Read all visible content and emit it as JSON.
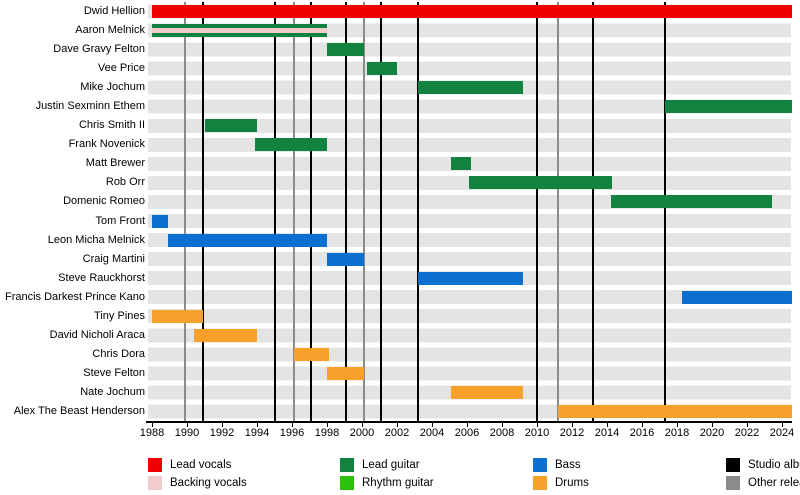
{
  "chart_data": {
    "type": "bar",
    "variant": "gantt-member-timeline",
    "title": "",
    "xlabel": "",
    "ylabel": "",
    "grid": "off",
    "legend_position": "bottom",
    "present_end": 2024.55,
    "x_axis": {
      "start": 1988,
      "end": 2024,
      "tick_interval": 2,
      "ticks": [
        1988,
        1990,
        1992,
        1994,
        1996,
        1998,
        2000,
        2002,
        2004,
        2006,
        2008,
        2010,
        2012,
        2014,
        2016,
        2018,
        2020,
        2022,
        2024
      ]
    },
    "members": [
      {
        "name": "Dwid Hellion",
        "segments": [
          {
            "role": "Lead vocals",
            "start": 1988.0,
            "end": "present"
          }
        ]
      },
      {
        "name": "Aaron Melnick",
        "segments": [
          {
            "role": "Lead guitar",
            "start": 1988.0,
            "end": 1998.0
          },
          {
            "role": "Backing vocals",
            "start": 1988.0,
            "end": 1998.0,
            "overlay": true
          }
        ]
      },
      {
        "name": "Dave Gravy Felton",
        "segments": [
          {
            "role": "Lead guitar",
            "start": 1998.0,
            "end": 2000.1
          }
        ]
      },
      {
        "name": "Vee Price",
        "segments": [
          {
            "role": "Lead guitar",
            "start": 2000.3,
            "end": 2002.0
          }
        ]
      },
      {
        "name": "Mike Jochum",
        "segments": [
          {
            "role": "Lead guitar",
            "start": 2003.2,
            "end": 2009.2
          }
        ]
      },
      {
        "name": "Justin Sexminn Ethem",
        "segments": [
          {
            "role": "Lead guitar",
            "start": 2017.3,
            "end": "present"
          }
        ]
      },
      {
        "name": "Chris Smith II",
        "segments": [
          {
            "role": "Lead guitar",
            "start": 1991.0,
            "end": 1994.0
          }
        ]
      },
      {
        "name": "Frank Novenick",
        "segments": [
          {
            "role": "Lead guitar",
            "start": 1993.9,
            "end": 1998.0
          }
        ]
      },
      {
        "name": "Matt Brewer",
        "segments": [
          {
            "role": "Lead guitar",
            "start": 2005.1,
            "end": 2006.2
          }
        ]
      },
      {
        "name": "Rob Orr",
        "segments": [
          {
            "role": "Lead guitar",
            "start": 2006.1,
            "end": 2014.3
          }
        ]
      },
      {
        "name": "Domenic Romeo",
        "segments": [
          {
            "role": "Lead guitar",
            "start": 2014.2,
            "end": 2023.4
          }
        ]
      },
      {
        "name": "Tom Front",
        "segments": [
          {
            "role": "Bass",
            "start": 1988.0,
            "end": 1988.9
          }
        ]
      },
      {
        "name": "Leon Micha Melnick",
        "segments": [
          {
            "role": "Bass",
            "start": 1988.9,
            "end": 1998.0
          }
        ]
      },
      {
        "name": "Craig Martini",
        "segments": [
          {
            "role": "Bass",
            "start": 1998.0,
            "end": 2000.1
          }
        ]
      },
      {
        "name": "Steve Rauckhorst",
        "segments": [
          {
            "role": "Bass",
            "start": 2003.2,
            "end": 2009.2
          }
        ]
      },
      {
        "name": "Francis Darkest Prince Kano",
        "segments": [
          {
            "role": "Bass",
            "start": 2018.3,
            "end": "present"
          }
        ]
      },
      {
        "name": "Tiny Pines",
        "segments": [
          {
            "role": "Drums",
            "start": 1988.0,
            "end": 1990.9
          }
        ]
      },
      {
        "name": "David Nicholi Araca",
        "segments": [
          {
            "role": "Drums",
            "start": 1990.4,
            "end": 1994.0
          }
        ]
      },
      {
        "name": "Chris Dora",
        "segments": [
          {
            "role": "Drums",
            "start": 1996.1,
            "end": 1998.1
          }
        ]
      },
      {
        "name": "Steve Felton",
        "segments": [
          {
            "role": "Drums",
            "start": 1998.0,
            "end": 2000.1
          }
        ]
      },
      {
        "name": "Nate Jochum",
        "segments": [
          {
            "role": "Drums",
            "start": 2005.1,
            "end": 2009.2
          }
        ]
      },
      {
        "name": "Alex The Beast Henderson",
        "segments": [
          {
            "role": "Drums",
            "start": 2011.2,
            "end": "present"
          }
        ]
      }
    ],
    "events": {
      "studio_albums": [
        1990.9,
        1995.0,
        1997.1,
        1999.1,
        2001.1,
        2003.2,
        2010.0,
        2013.2,
        2017.3
      ],
      "other_releases": [
        1989.9,
        1996.1,
        2000.1,
        2011.2
      ]
    },
    "legend": [
      {
        "label": "Lead vocals",
        "color": "#f20000"
      },
      {
        "label": "Backing vocals",
        "color": "#f2cccc"
      },
      {
        "label": "Lead guitar",
        "color": "#128240"
      },
      {
        "label": "Rhythm guitar",
        "color": "#2ec10c"
      },
      {
        "label": "Bass",
        "color": "#0b6fd0"
      },
      {
        "label": "Drums",
        "color": "#f8a02c"
      },
      {
        "label": "Studio albums",
        "color": "#000000"
      },
      {
        "label": "Other releases",
        "color": "#8b8b8b"
      }
    ]
  }
}
